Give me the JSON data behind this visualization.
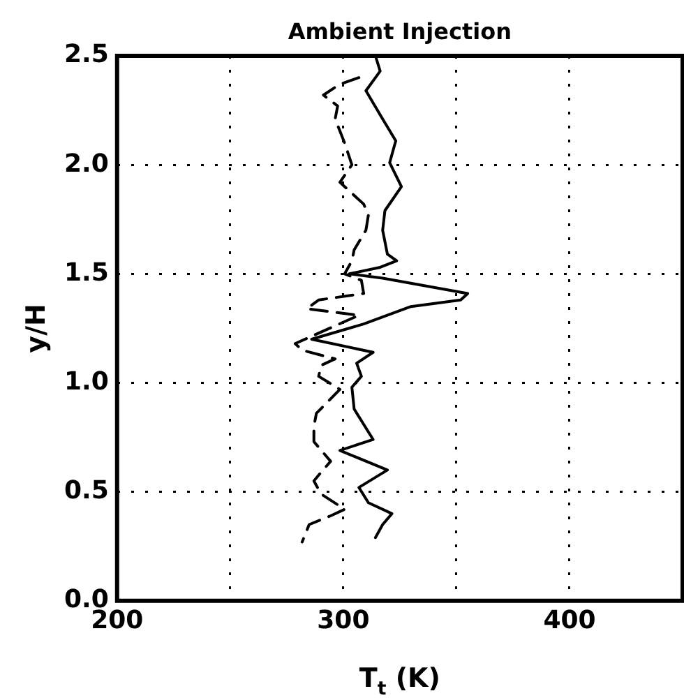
{
  "chart_data": {
    "type": "line",
    "title": "Ambient Injection",
    "xlabel": "T$_{t}$ (K)",
    "ylabel": "y/H",
    "xlim": [
      200,
      450
    ],
    "xticks": [
      200,
      {
        "value": 250,
        "label": null
      },
      300,
      {
        "value": 350,
        "label": null
      },
      400
    ],
    "ylim": [
      0,
      2.5
    ],
    "yticks": [
      {
        "value": 0,
        "label": "0.0"
      },
      0.5,
      {
        "value": 1,
        "label": "1.0"
      },
      1.5,
      {
        "value": 2,
        "label": "2.0"
      },
      2.5
    ],
    "grid": true,
    "legend": false,
    "marker": "none",
    "series": [
      {
        "color": "#000000",
        "line_style": "solid",
        "x": [
          314.2,
          316.3,
          310.0,
          317.4,
          323.2,
          320.5,
          325.7,
          318.4,
          317.4,
          319.5,
          323.6,
          316.3,
          302.7,
          317.4,
          355.0,
          351.9,
          329.9,
          309.0,
          286.0,
          313.2,
          305.9,
          308.0,
          303.8,
          304.8,
          313.2,
          298.5,
          319.5,
          306.9,
          311.1,
          321.5,
          317.4,
          314.2
        ],
        "values": [
          2.5,
          2.43,
          2.34,
          2.21,
          2.11,
          2.01,
          1.9,
          1.79,
          1.7,
          1.59,
          1.56,
          1.53,
          1.5,
          1.48,
          1.41,
          1.38,
          1.35,
          1.27,
          1.2,
          1.14,
          1.09,
          1.03,
          0.98,
          0.88,
          0.74,
          0.69,
          0.6,
          0.52,
          0.45,
          0.4,
          0.35,
          0.29
        ]
      },
      {
        "color": "#000000",
        "line_style": "dashed",
        "x": [
          306.9,
          298.5,
          291.2,
          297.5,
          296.4,
          300.6,
          303.8,
          298.5,
          309.0,
          311.1,
          310.0,
          304.8,
          303.8,
          300.6,
          308.0,
          309.0,
          289.1,
          283.9,
          306.9,
          278.7,
          281.8,
          296.4,
          290.2,
          289.1,
          298.5,
          288.1,
          287.0,
          287.0,
          294.4,
          290.2,
          287.0,
          290.2,
          300.6,
          294.4,
          284.9,
          281.8
        ],
        "values": [
          2.4,
          2.37,
          2.32,
          2.27,
          2.21,
          2.1,
          2.0,
          1.92,
          1.82,
          1.77,
          1.7,
          1.61,
          1.56,
          1.5,
          1.47,
          1.41,
          1.38,
          1.34,
          1.31,
          1.18,
          1.15,
          1.11,
          1.08,
          1.03,
          0.97,
          0.86,
          0.8,
          0.73,
          0.64,
          0.59,
          0.55,
          0.49,
          0.42,
          0.39,
          0.35,
          0.27
        ]
      }
    ]
  }
}
